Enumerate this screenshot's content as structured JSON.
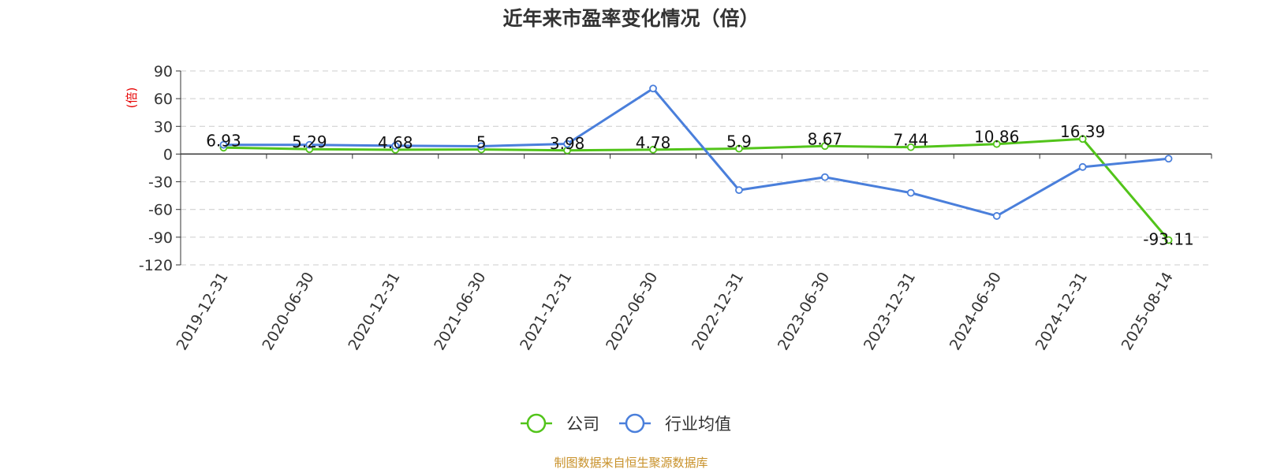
{
  "chart_data": {
    "type": "line",
    "title": "近年来市盈率变化情况（倍）",
    "y_unit": "(倍)",
    "categories": [
      "2019-12-31",
      "2020-06-30",
      "2020-12-31",
      "2021-06-30",
      "2021-12-31",
      "2022-06-30",
      "2022-12-31",
      "2023-06-30",
      "2023-12-31",
      "2024-06-30",
      "2024-12-31",
      "2025-08-14"
    ],
    "ylim": [
      -120,
      90
    ],
    "yticks": [
      "90",
      "60",
      "30",
      "0",
      "-30",
      "-60",
      "-90",
      "-120"
    ],
    "grid": true,
    "legend_position": "bottom",
    "series": [
      {
        "name": "公司",
        "color": "#52c41a",
        "values": [
          6.93,
          5.29,
          4.68,
          5,
          3.98,
          4.78,
          5.9,
          8.67,
          7.44,
          10.86,
          16.39,
          -93.11
        ],
        "labels": [
          "6.93",
          "5.29",
          "4.68",
          "5",
          "3.98",
          "4.78",
          "5.9",
          "8.67",
          "7.44",
          "10.86",
          "16.39",
          "-93.11"
        ]
      },
      {
        "name": "行业均值",
        "color": "#4a7fdb",
        "values": [
          10,
          10,
          9,
          8.5,
          11,
          71,
          -39,
          -25,
          -42,
          -67,
          -14,
          -5
        ]
      }
    ]
  },
  "source": "制图数据来自恒生聚源数据库",
  "colors": {
    "axis": "#333333",
    "grid": "#cccccc",
    "unit": "#e60000",
    "source": "#c8912a"
  }
}
